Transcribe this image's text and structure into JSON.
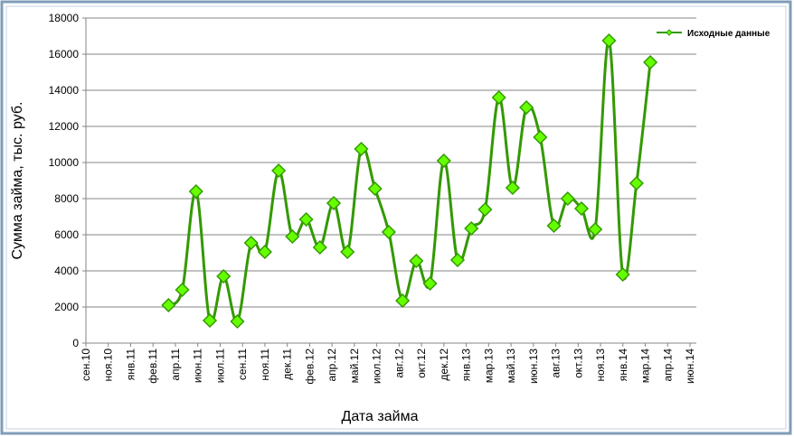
{
  "chart_data": {
    "type": "line",
    "x_label": "Дата займа",
    "y_label": "Сумма займа, тыс. руб.",
    "x": [
      "2011-03",
      "2011-04",
      "2011-05",
      "2011-06",
      "2011-07",
      "2011-08",
      "2011-09",
      "2011-10",
      "2011-11",
      "2011-12",
      "2012-01",
      "2012-02",
      "2012-03",
      "2012-04",
      "2012-05",
      "2012-06",
      "2012-07",
      "2012-08",
      "2012-09",
      "2012-10",
      "2012-11",
      "2012-12",
      "2013-01",
      "2013-02",
      "2013-03",
      "2013-04",
      "2013-05",
      "2013-06",
      "2013-07",
      "2013-08",
      "2013-09",
      "2013-10",
      "2013-11",
      "2013-12",
      "2014-01",
      "2014-02"
    ],
    "series": [
      {
        "name": "Исходные данные",
        "color": "#339900",
        "marker_color": "#66ff00",
        "values": [
          2100,
          2950,
          8400,
          1250,
          3700,
          1200,
          5550,
          5050,
          9550,
          5900,
          6850,
          5300,
          7750,
          5050,
          10750,
          8550,
          6150,
          2350,
          4550,
          3300,
          10100,
          4600,
          6350,
          7400,
          13600,
          8600,
          13050,
          11400,
          6500,
          8000,
          7450,
          6300,
          16750,
          3800,
          8850,
          15550
        ]
      }
    ],
    "xlim": [
      "2010-09",
      "2014-06"
    ],
    "xticks": [
      "сен.10",
      "ноя.10",
      "янв.11",
      "фев.11",
      "апр.11",
      "июн.11",
      "июл.11",
      "сен.11",
      "ноя.11",
      "дек.11",
      "фев.12",
      "апр.12",
      "май.12",
      "июл.12",
      "авг.12",
      "окт.12",
      "дек.12",
      "янв.13",
      "мар.13",
      "май.13",
      "июн.13",
      "авг.13",
      "окт.13",
      "ноя.13",
      "янв.14",
      "мар.14",
      "апр.14",
      "июн.14"
    ],
    "ylim": [
      0,
      18000
    ],
    "yticks": [
      0,
      2000,
      4000,
      6000,
      8000,
      10000,
      12000,
      14000,
      16000,
      18000
    ],
    "grid": true,
    "legend": "top-right"
  }
}
